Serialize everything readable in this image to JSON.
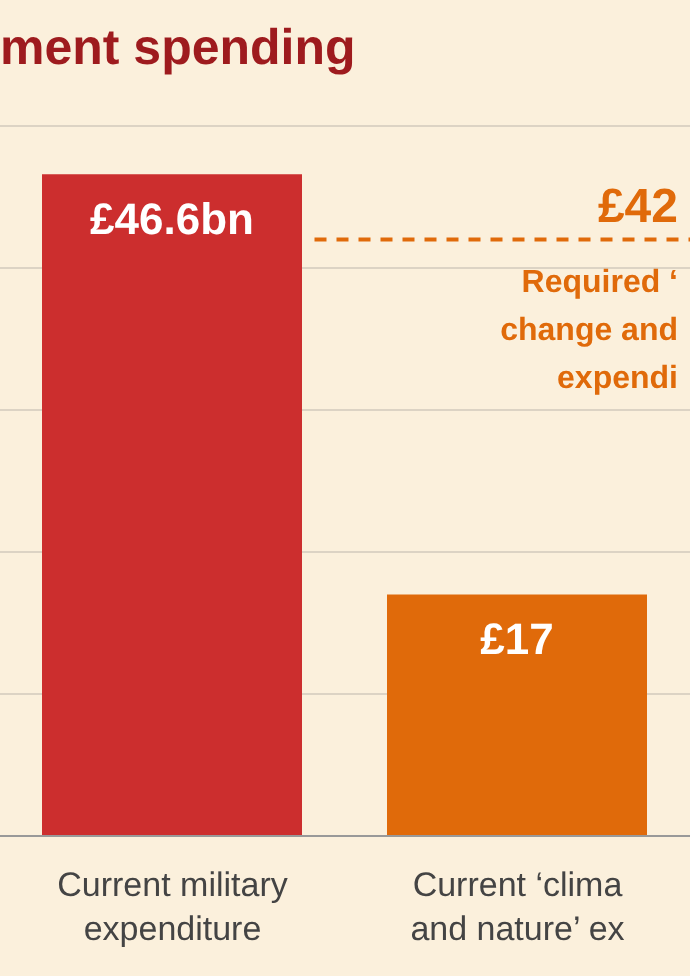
{
  "chart_data": {
    "type": "bar",
    "title": "ment spending",
    "categories": [
      "Current military\nexpenditure",
      "Current ‘clima\nand nature’ ex"
    ],
    "values": [
      46.6,
      17
    ],
    "colors": [
      "#cc2e2e",
      "#e06a0a"
    ],
    "value_labels": [
      "£46.6bn",
      "£17"
    ],
    "ylim": [
      0,
      50
    ],
    "yticks": [
      {
        "value": 0,
        "label": null
      },
      {
        "value": 10,
        "label": null
      },
      {
        "value": 20,
        "label": null
      },
      {
        "value": 30,
        "label": null
      },
      {
        "value": 40,
        "label": null
      },
      {
        "value": 50,
        "label": null
      }
    ],
    "grid": "y",
    "tick_labels": "x",
    "ref_lines": [
      {
        "axis": "y",
        "value": 42,
        "label": "£42",
        "color": "#e06a0a",
        "line_style": "dashed"
      }
    ],
    "annotations": [
      "Required ‘\nchange and\nexpendi"
    ]
  }
}
